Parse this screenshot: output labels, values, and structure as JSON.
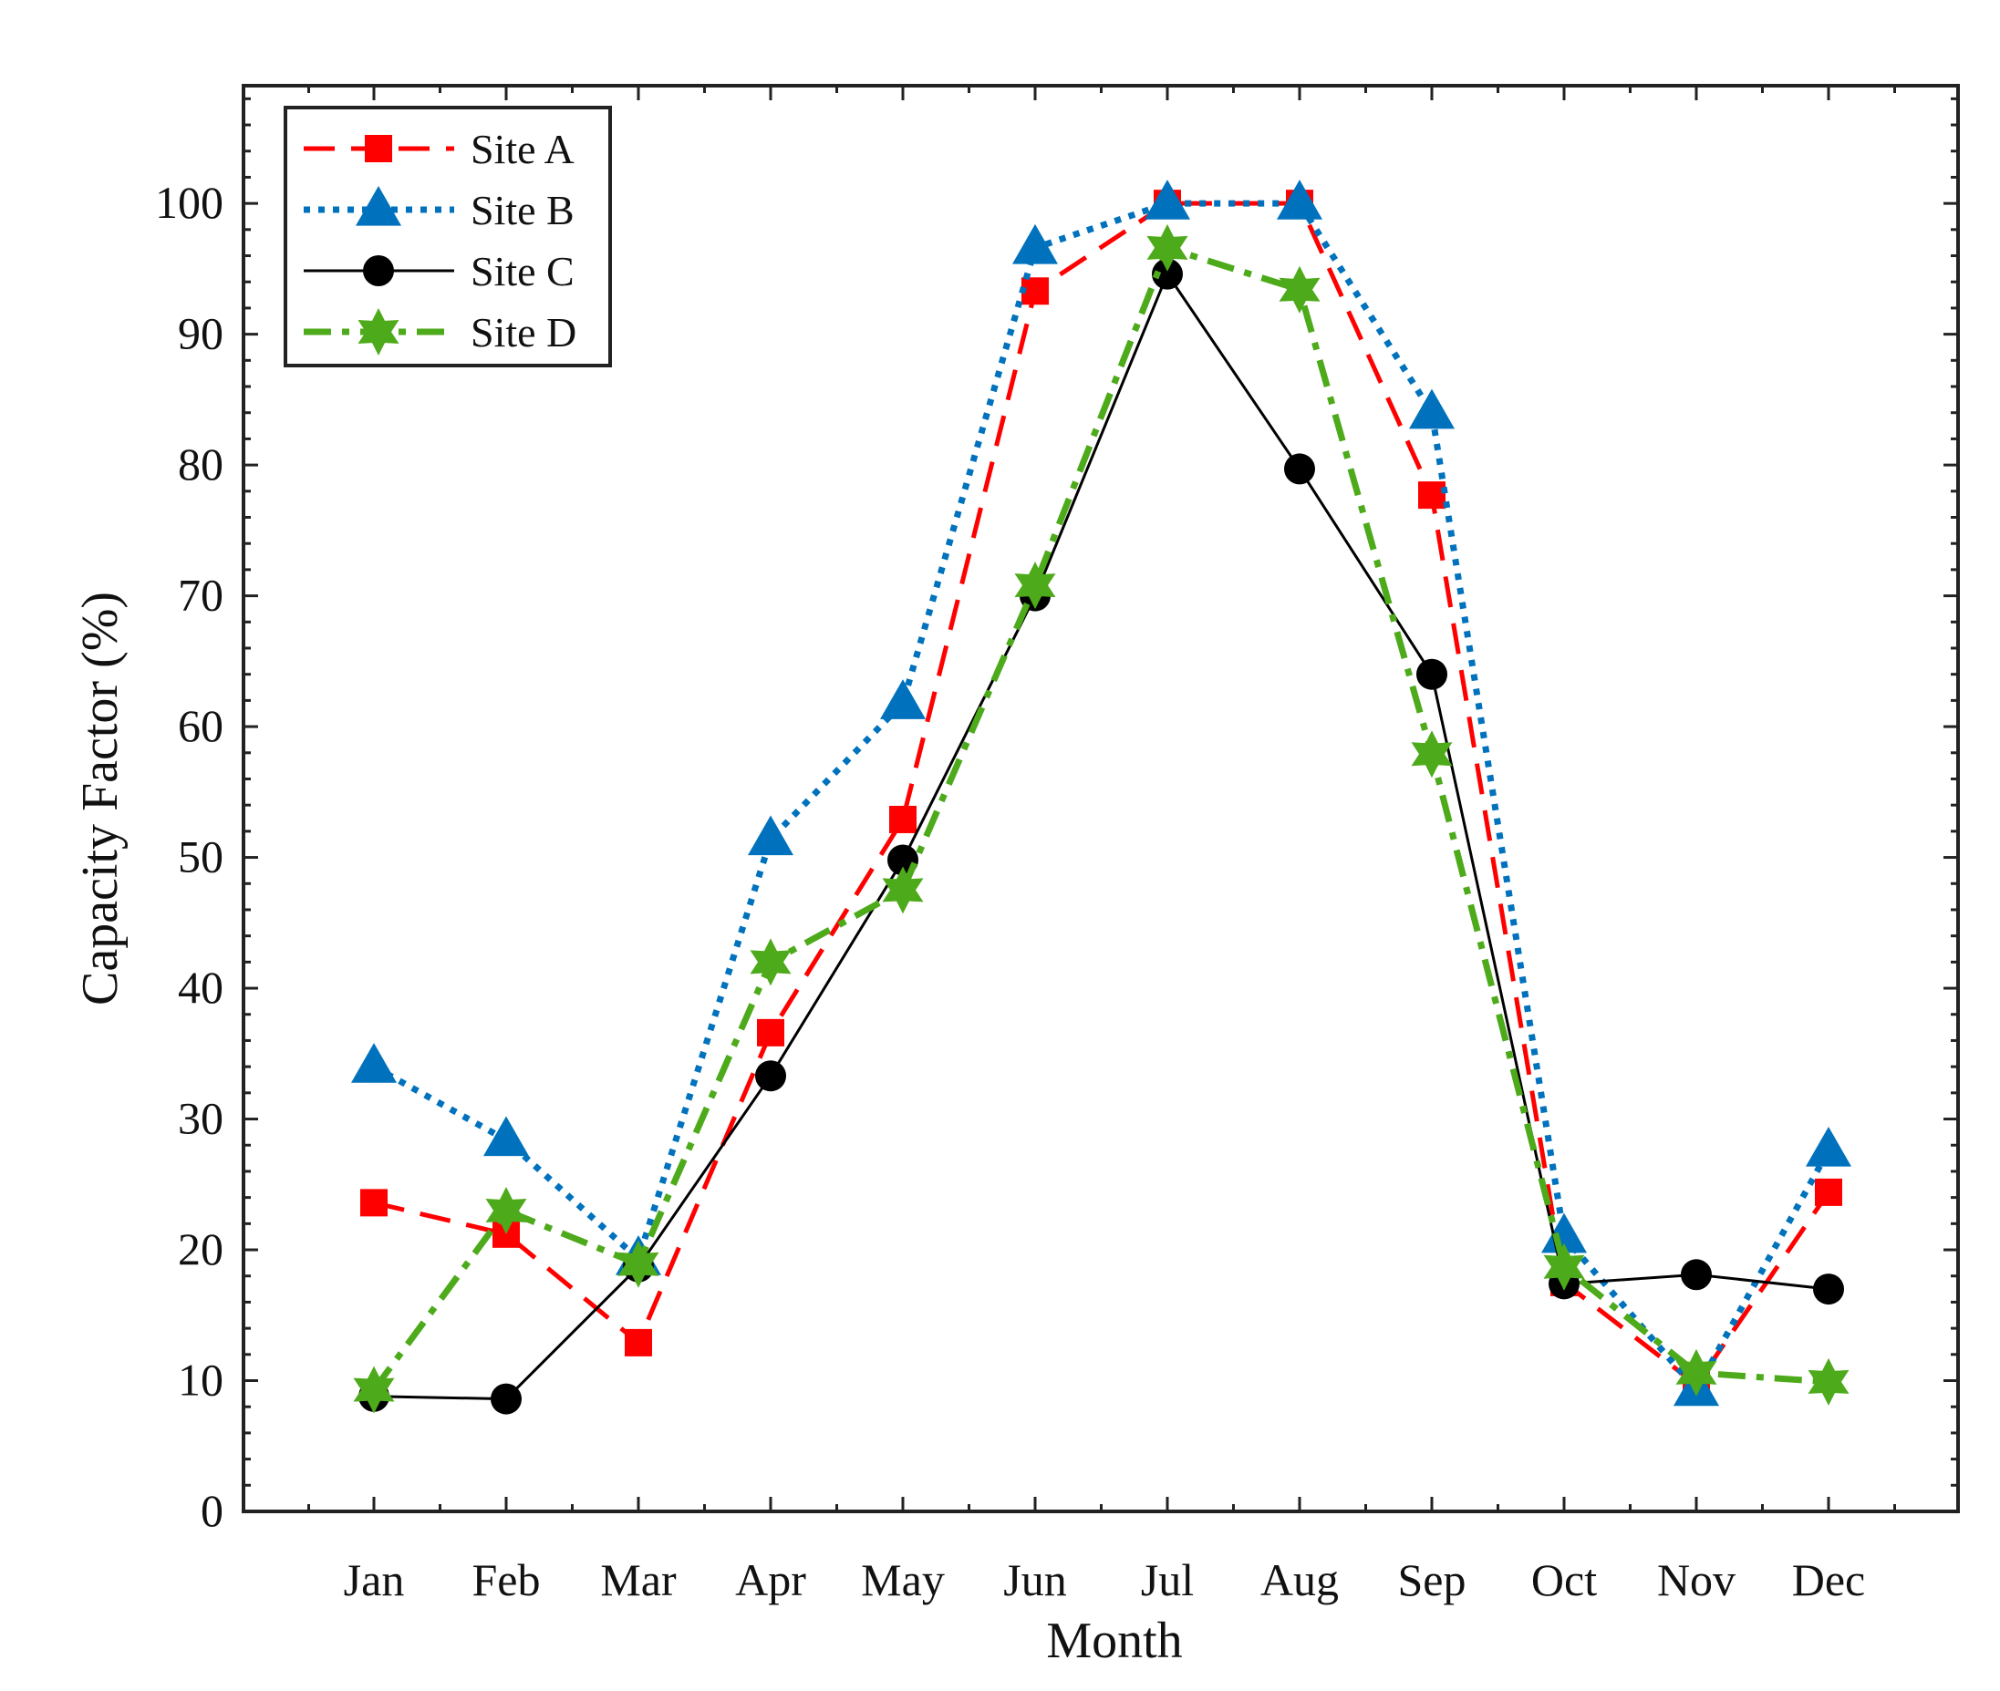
{
  "chart_data": {
    "type": "line",
    "title": "",
    "xlabel": "Month",
    "ylabel": "Capacity Factor (%)",
    "categories": [
      "Jan",
      "Feb",
      "Mar",
      "Apr",
      "May",
      "Jun",
      "Jul",
      "Aug",
      "Sep",
      "Oct",
      "Nov",
      "Dec"
    ],
    "ylim": [
      0,
      109
    ],
    "yticks": [
      0,
      10,
      20,
      30,
      40,
      50,
      60,
      70,
      80,
      90,
      100
    ],
    "legend_position": "top-left",
    "series": [
      {
        "name": "Site A",
        "color": "#ff0000",
        "line": "dashed",
        "marker": "square",
        "values": [
          23.6,
          21.2,
          12.9,
          36.6,
          52.9,
          93.3,
          100,
          100,
          77.7,
          17.5,
          9.7,
          24.4
        ]
      },
      {
        "name": "Site B",
        "color": "#0072bd",
        "line": "dotted",
        "marker": "triangle",
        "values": [
          34.0,
          28.4,
          19.3,
          51.4,
          61.8,
          96.6,
          100,
          100,
          84.0,
          21.0,
          9.3,
          27.6
        ]
      },
      {
        "name": "Site C",
        "color": "#000000",
        "line": "solid",
        "marker": "circle",
        "values": [
          8.8,
          8.6,
          18.7,
          33.3,
          49.8,
          70.0,
          94.6,
          79.7,
          64.0,
          17.4,
          18.1,
          17.0
        ]
      },
      {
        "name": "Site D",
        "color": "#4daa1a",
        "line": "dashdot",
        "marker": "hexagram",
        "values": [
          9.3,
          23.0,
          18.9,
          42.0,
          47.5,
          70.8,
          96.6,
          93.4,
          57.9,
          18.7,
          10.6,
          9.9
        ]
      }
    ]
  }
}
